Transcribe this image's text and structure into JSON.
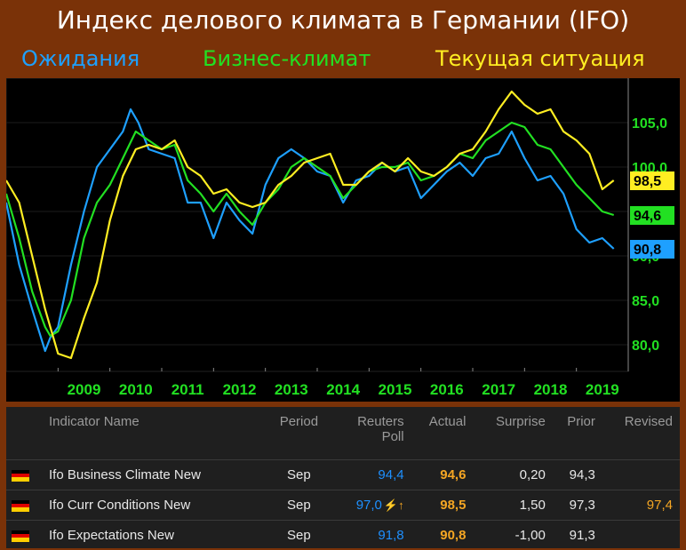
{
  "title": "Индекс делового климата в Германии (IFO)",
  "legend": [
    {
      "label": "Ожидания",
      "color": "#1ea0ff"
    },
    {
      "label": "Бизнес-климат",
      "color": "#22e022"
    },
    {
      "label": "Текущая ситуация",
      "color": "#ffee22"
    }
  ],
  "chart_data": {
    "type": "line",
    "x_ticks": [
      "2009",
      "2010",
      "2011",
      "2012",
      "2013",
      "2014",
      "2015",
      "2016",
      "2017",
      "2018",
      "2019"
    ],
    "y_ticks": [
      "80,0",
      "85,0",
      "90,0",
      "95,0",
      "100,0",
      "105,0"
    ],
    "ylim": [
      77,
      110
    ],
    "xlim": [
      2008.0,
      2020.0
    ],
    "series": [
      {
        "key": "expectations",
        "color": "#1ea0ff",
        "x": [
          2008.0,
          2008.25,
          2008.5,
          2008.75,
          2008.85,
          2009.0,
          2009.25,
          2009.5,
          2009.75,
          2010.0,
          2010.25,
          2010.4,
          2010.55,
          2010.75,
          2011.0,
          2011.25,
          2011.5,
          2011.75,
          2012.0,
          2012.25,
          2012.5,
          2012.75,
          2013.0,
          2013.25,
          2013.5,
          2013.75,
          2014.0,
          2014.25,
          2014.5,
          2014.75,
          2015.0,
          2015.25,
          2015.5,
          2015.75,
          2016.0,
          2016.25,
          2016.5,
          2016.75,
          2017.0,
          2017.25,
          2017.5,
          2017.75,
          2018.0,
          2018.25,
          2018.5,
          2018.75,
          2019.0,
          2019.25,
          2019.5,
          2019.72
        ],
        "values": [
          96.0,
          89.0,
          84.0,
          79.3,
          80.8,
          82.0,
          89.0,
          95.0,
          100.0,
          102.0,
          104.0,
          106.5,
          105.0,
          102.0,
          101.5,
          101.0,
          96.0,
          96.0,
          92.0,
          96.0,
          94.0,
          92.5,
          98.0,
          101.0,
          102.0,
          101.0,
          99.5,
          99.0,
          96.0,
          98.5,
          99.0,
          100.5,
          99.5,
          100.0,
          96.5,
          98.0,
          99.5,
          100.5,
          99.0,
          101.0,
          101.5,
          104.0,
          101.0,
          98.5,
          99.0,
          97.0,
          93.0,
          91.5,
          92.0,
          90.8
        ]
      },
      {
        "key": "climate",
        "color": "#22e022",
        "x": [
          2008.0,
          2008.25,
          2008.5,
          2008.75,
          2008.85,
          2009.0,
          2009.25,
          2009.5,
          2009.75,
          2010.0,
          2010.25,
          2010.5,
          2010.75,
          2011.0,
          2011.25,
          2011.5,
          2011.75,
          2012.0,
          2012.25,
          2012.5,
          2012.75,
          2013.0,
          2013.25,
          2013.5,
          2013.75,
          2014.0,
          2014.25,
          2014.5,
          2014.75,
          2015.0,
          2015.25,
          2015.5,
          2015.75,
          2016.0,
          2016.25,
          2016.5,
          2016.75,
          2017.0,
          2017.25,
          2017.5,
          2017.75,
          2018.0,
          2018.25,
          2018.5,
          2018.75,
          2019.0,
          2019.25,
          2019.5,
          2019.72
        ],
        "values": [
          97.0,
          92.0,
          86.0,
          82.0,
          81.0,
          81.5,
          85.0,
          92.0,
          96.0,
          98.0,
          101.0,
          104.0,
          103.0,
          102.0,
          102.5,
          98.5,
          97.0,
          95.0,
          97.0,
          95.0,
          93.5,
          96.0,
          97.5,
          100.0,
          101.0,
          100.0,
          99.0,
          96.5,
          98.0,
          99.5,
          100.0,
          100.0,
          100.5,
          98.5,
          99.0,
          100.0,
          101.5,
          101.0,
          103.0,
          104.0,
          105.0,
          104.5,
          102.5,
          102.0,
          100.0,
          98.0,
          96.5,
          95.0,
          94.6
        ]
      },
      {
        "key": "current",
        "color": "#ffee22",
        "x": [
          2008.0,
          2008.25,
          2008.5,
          2008.75,
          2009.0,
          2009.25,
          2009.5,
          2009.75,
          2010.0,
          2010.25,
          2010.5,
          2010.75,
          2011.0,
          2011.25,
          2011.5,
          2011.75,
          2012.0,
          2012.25,
          2012.5,
          2012.75,
          2013.0,
          2013.25,
          2013.5,
          2013.75,
          2014.0,
          2014.25,
          2014.5,
          2014.75,
          2015.0,
          2015.25,
          2015.5,
          2015.75,
          2016.0,
          2016.25,
          2016.5,
          2016.75,
          2017.0,
          2017.25,
          2017.5,
          2017.75,
          2018.0,
          2018.25,
          2018.5,
          2018.75,
          2019.0,
          2019.25,
          2019.5,
          2019.72
        ],
        "values": [
          98.5,
          96.0,
          90.0,
          84.0,
          79.0,
          78.5,
          83.0,
          87.0,
          94.0,
          99.0,
          102.0,
          102.5,
          102.0,
          103.0,
          100.0,
          99.0,
          97.0,
          97.5,
          96.0,
          95.5,
          96.0,
          98.0,
          99.0,
          100.5,
          101.0,
          101.5,
          98.0,
          98.0,
          99.5,
          100.5,
          99.5,
          101.0,
          99.5,
          99.0,
          100.0,
          101.5,
          102.0,
          104.0,
          106.5,
          108.5,
          107.0,
          106.0,
          106.5,
          104.0,
          103.0,
          101.5,
          97.5,
          98.5
        ]
      }
    ],
    "end_labels": [
      {
        "text": "98,5",
        "value": 98.5,
        "bg": "#ffee22",
        "fg": "#000000"
      },
      {
        "text": "94,6",
        "value": 94.6,
        "bg": "#22e022",
        "fg": "#000000"
      },
      {
        "text": "90,8",
        "value": 90.8,
        "bg": "#1ea0ff",
        "fg": "#000000"
      }
    ]
  },
  "table": {
    "headers": {
      "name": "Indicator Name",
      "period": "Period",
      "poll_line1": "Reuters",
      "poll_line2": "Poll",
      "actual": "Actual",
      "surprise": "Surprise",
      "prior": "Prior",
      "revised": "Revised"
    },
    "rows": [
      {
        "name": "Ifo Business Climate New",
        "period": "Sep",
        "poll": "94,4",
        "actual": "94,6",
        "surprise": "0,20",
        "prior": "94,3",
        "revised": ""
      },
      {
        "name": "Ifo Curr Conditions New",
        "period": "Sep",
        "poll": "97,0",
        "actual": "98,5",
        "surprise": "1,50",
        "prior": "97,3",
        "revised": "97,4"
      },
      {
        "name": "Ifo Expectations New",
        "period": "Sep",
        "poll": "91,8",
        "actual": "90,8",
        "surprise": "-1,00",
        "prior": "91,3",
        "revised": ""
      }
    ],
    "flag_colors": [
      "#000000",
      "#dd0000",
      "#ffce00"
    ]
  }
}
